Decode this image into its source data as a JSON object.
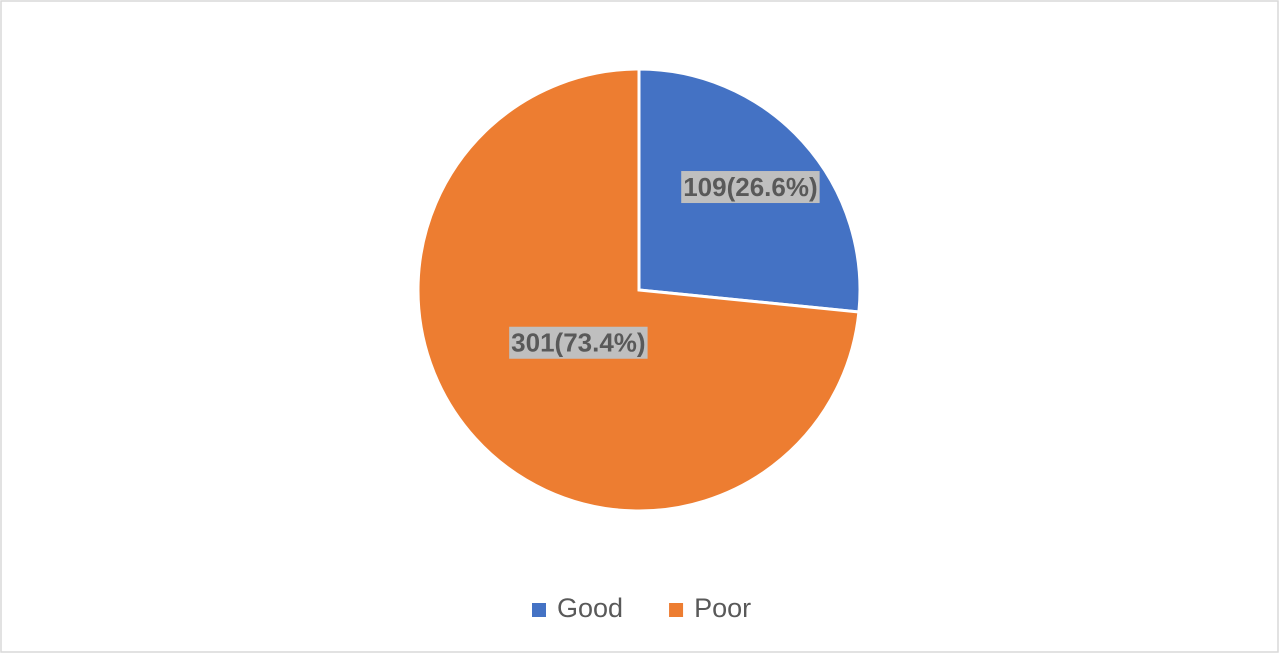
{
  "chart_data": {
    "type": "pie",
    "categories": [
      "Good",
      "Poor"
    ],
    "values": [
      109,
      301
    ],
    "value_labels": [
      "109(26.6%)",
      "301(73.4%)"
    ],
    "colors": [
      "#4472c4",
      "#ed7d31"
    ],
    "legend": "bottom"
  }
}
